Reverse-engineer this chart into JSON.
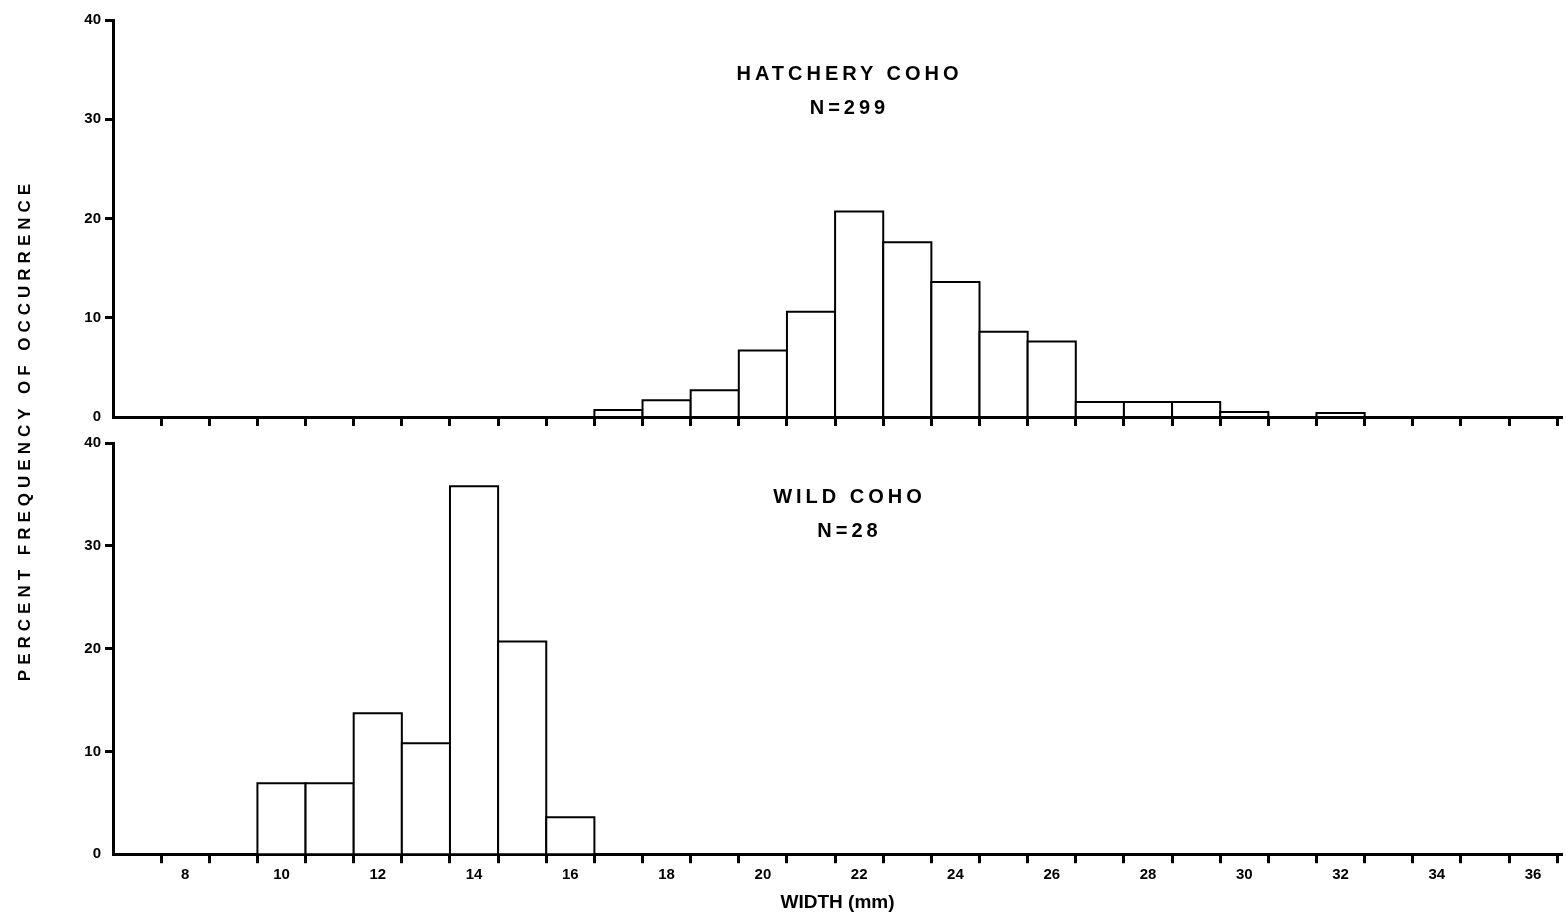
{
  "chart_data": [
    {
      "type": "histogram",
      "title": "HATCHERY COHO",
      "subtitle": "N=299",
      "ylabel": "PERCENT FREQUENCY OF OCCURRENCE",
      "color": "#ffffff",
      "bins": [
        16.5,
        17.5,
        18.5,
        19.5,
        20.5,
        21.5,
        22.5,
        23.5,
        24.5,
        25.5,
        26.5,
        27.5,
        28.5,
        29.5,
        30.5,
        31.5,
        32.5
      ],
      "values": [
        0.7,
        1.7,
        2.7,
        6.7,
        10.6,
        20.7,
        17.6,
        13.6,
        8.6,
        7.6,
        1.5,
        1.5,
        1.5,
        0.5,
        0,
        0.4
      ],
      "xlim": [
        6.5,
        36.6
      ],
      "xticks": [
        {
          "value": 7.5,
          "label": null
        },
        {
          "value": 8.5,
          "label": null
        },
        {
          "value": 9.5,
          "label": null
        },
        {
          "value": 10.5,
          "label": null
        },
        {
          "value": 11.5,
          "label": null
        },
        {
          "value": 12.5,
          "label": null
        },
        {
          "value": 13.5,
          "label": null
        },
        {
          "value": 14.5,
          "label": null
        },
        {
          "value": 15.5,
          "label": null
        },
        {
          "value": 16.5,
          "label": null
        },
        {
          "value": 17.5,
          "label": null
        },
        {
          "value": 18.5,
          "label": null
        },
        {
          "value": 19.5,
          "label": null
        },
        {
          "value": 20.5,
          "label": null
        },
        {
          "value": 21.5,
          "label": null
        },
        {
          "value": 22.5,
          "label": null
        },
        {
          "value": 23.5,
          "label": null
        },
        {
          "value": 24.5,
          "label": null
        },
        {
          "value": 25.5,
          "label": null
        },
        {
          "value": 26.5,
          "label": null
        },
        {
          "value": 27.5,
          "label": null
        },
        {
          "value": 28.5,
          "label": null
        },
        {
          "value": 29.5,
          "label": null
        },
        {
          "value": 30.5,
          "label": null
        },
        {
          "value": 31.5,
          "label": null
        },
        {
          "value": 32.5,
          "label": null
        },
        {
          "value": 33.5,
          "label": null
        },
        {
          "value": 34.5,
          "label": null
        },
        {
          "value": 35.5,
          "label": null
        },
        {
          "value": 36.5,
          "label": null
        }
      ],
      "ylim": [
        0,
        40
      ],
      "yticks": [
        0,
        10,
        20,
        30,
        40
      ],
      "tick_labels": "y",
      "grid": false,
      "legend": false
    },
    {
      "type": "histogram",
      "title": "WILD COHO",
      "subtitle": "N=28",
      "xlabel": "WIDTH (mm)",
      "color": "#ffffff",
      "bins": [
        9.5,
        10.5,
        11.5,
        12.5,
        13.5,
        14.5,
        15.5,
        16.5
      ],
      "values": [
        6.9,
        6.9,
        13.7,
        10.8,
        35.8,
        20.7,
        3.6
      ],
      "xlim": [
        6.5,
        36.6
      ],
      "xticks": [
        {
          "value": 7.5,
          "label": null
        },
        {
          "value": 8,
          "label": "8"
        },
        {
          "value": 8.5,
          "label": null
        },
        {
          "value": 9.5,
          "label": null
        },
        {
          "value": 10,
          "label": "10"
        },
        {
          "value": 10.5,
          "label": null
        },
        {
          "value": 11.5,
          "label": null
        },
        {
          "value": 12,
          "label": "12"
        },
        {
          "value": 12.5,
          "label": null
        },
        {
          "value": 13.5,
          "label": null
        },
        {
          "value": 14,
          "label": "14"
        },
        {
          "value": 14.5,
          "label": null
        },
        {
          "value": 15.5,
          "label": null
        },
        {
          "value": 16,
          "label": "16"
        },
        {
          "value": 16.5,
          "label": null
        },
        {
          "value": 17.5,
          "label": null
        },
        {
          "value": 18,
          "label": "18"
        },
        {
          "value": 18.5,
          "label": null
        },
        {
          "value": 19.5,
          "label": null
        },
        {
          "value": 20,
          "label": "20"
        },
        {
          "value": 20.5,
          "label": null
        },
        {
          "value": 21.5,
          "label": null
        },
        {
          "value": 22,
          "label": "22"
        },
        {
          "value": 22.5,
          "label": null
        },
        {
          "value": 23.5,
          "label": null
        },
        {
          "value": 24,
          "label": "24"
        },
        {
          "value": 24.5,
          "label": null
        },
        {
          "value": 25.5,
          "label": null
        },
        {
          "value": 26,
          "label": "26"
        },
        {
          "value": 26.5,
          "label": null
        },
        {
          "value": 27.5,
          "label": null
        },
        {
          "value": 28,
          "label": "28"
        },
        {
          "value": 28.5,
          "label": null
        },
        {
          "value": 29.5,
          "label": null
        },
        {
          "value": 30,
          "label": "30"
        },
        {
          "value": 30.5,
          "label": null
        },
        {
          "value": 31.5,
          "label": null
        },
        {
          "value": 32,
          "label": "32"
        },
        {
          "value": 32.5,
          "label": null
        },
        {
          "value": 33.5,
          "label": null
        },
        {
          "value": 34,
          "label": "34"
        },
        {
          "value": 34.5,
          "label": null
        },
        {
          "value": 35.5,
          "label": null
        },
        {
          "value": 36,
          "label": "36"
        },
        {
          "value": 36.5,
          "label": null
        }
      ],
      "ylim": [
        0,
        40
      ],
      "yticks": [
        0,
        10,
        20,
        30,
        40
      ],
      "grid": false,
      "legend": false
    }
  ]
}
